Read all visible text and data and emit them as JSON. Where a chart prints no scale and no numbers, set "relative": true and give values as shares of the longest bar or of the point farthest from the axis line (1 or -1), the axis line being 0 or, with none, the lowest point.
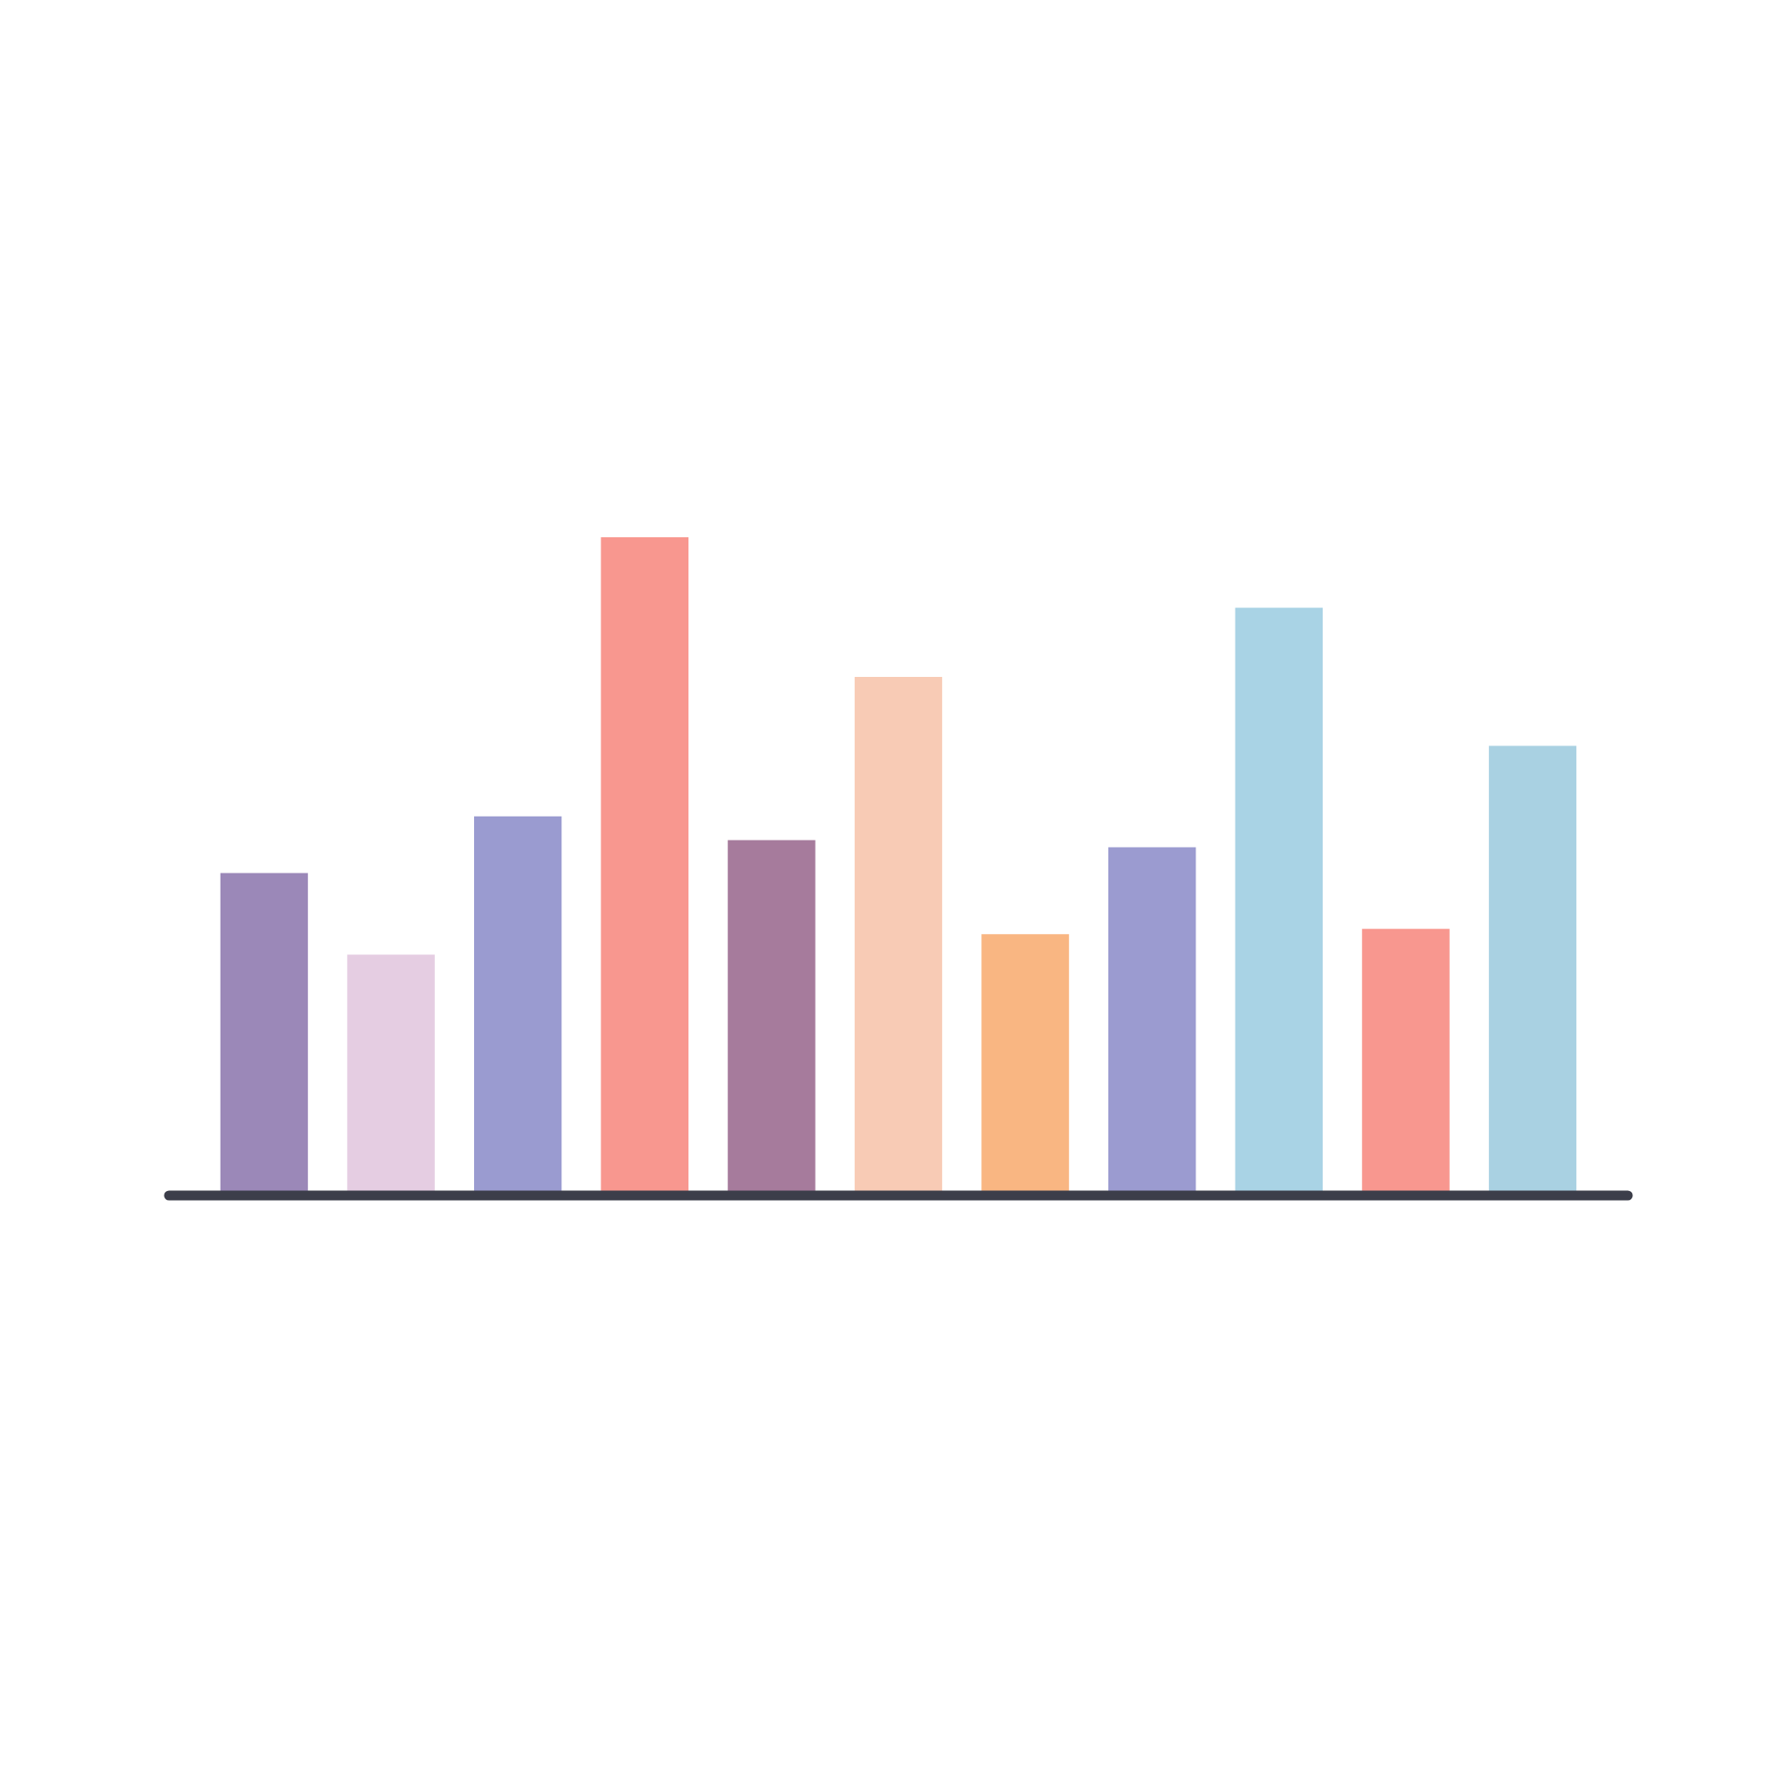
{
  "chart_data": {
    "type": "bar",
    "relative": true,
    "categories": [
      null,
      null,
      null,
      null,
      null,
      null,
      null,
      null,
      null,
      null,
      null
    ],
    "values": [
      0.49,
      0.366,
      0.576,
      1,
      0.54,
      0.788,
      0.397,
      0.529,
      0.893,
      0.405,
      0.683
    ],
    "colors": [
      "#9b88b8",
      "#e5cde2",
      "#9a9bd0",
      "#f8978f",
      "#a67b9c",
      "#f8cbb5",
      "#f9b682",
      "#9b9bd0",
      "#a9d3e5",
      "#f8978f",
      "#a9d1e2"
    ],
    "grid": false,
    "legend": false
  }
}
